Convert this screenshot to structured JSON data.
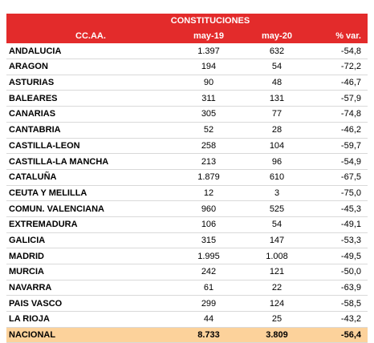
{
  "table": {
    "title": "CONSTITUCIONES",
    "header": [
      "CC.AA.",
      "may-19",
      "may-20",
      "% var."
    ],
    "rows": [
      [
        "ANDALUCIA",
        "1.397",
        "632",
        "-54,8"
      ],
      [
        "ARAGON",
        "194",
        "54",
        "-72,2"
      ],
      [
        "ASTURIAS",
        "90",
        "48",
        "-46,7"
      ],
      [
        "BALEARES",
        "311",
        "131",
        "-57,9"
      ],
      [
        "CANARIAS",
        "305",
        "77",
        "-74,8"
      ],
      [
        "CANTABRIA",
        "52",
        "28",
        "-46,2"
      ],
      [
        "CASTILLA-LEON",
        "258",
        "104",
        "-59,7"
      ],
      [
        "CASTILLA-LA MANCHA",
        "213",
        "96",
        "-54,9"
      ],
      [
        "CATALUÑA",
        "1.879",
        "610",
        "-67,5"
      ],
      [
        "CEUTA Y MELILLA",
        "12",
        "3",
        "-75,0"
      ],
      [
        "COMUN. VALENCIANA",
        "960",
        "525",
        "-45,3"
      ],
      [
        "EXTREMADURA",
        "106",
        "54",
        "-49,1"
      ],
      [
        "GALICIA",
        "315",
        "147",
        "-53,3"
      ],
      [
        "MADRID",
        "1.995",
        "1.008",
        "-49,5"
      ],
      [
        "MURCIA",
        "242",
        "121",
        "-50,0"
      ],
      [
        "NAVARRA",
        "61",
        "22",
        "-63,9"
      ],
      [
        "PAIS VASCO",
        "299",
        "124",
        "-58,5"
      ],
      [
        "LA RIOJA",
        "44",
        "25",
        "-43,2"
      ]
    ],
    "total": [
      "NACIONAL",
      "8.733",
      "3.809",
      "-56,4"
    ]
  }
}
